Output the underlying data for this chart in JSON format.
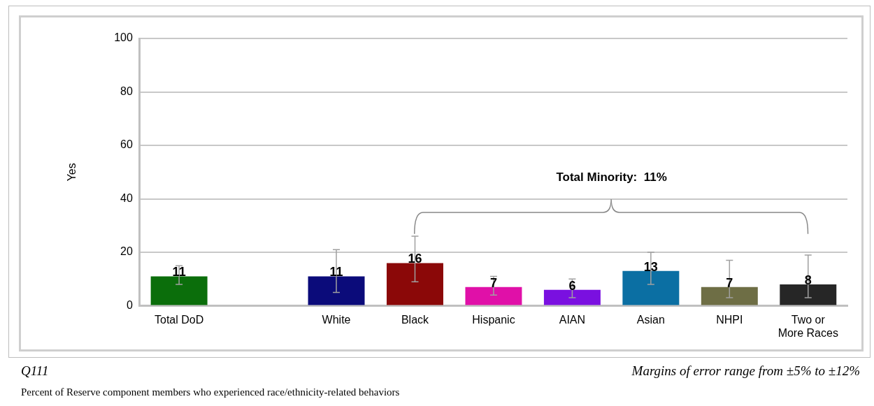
{
  "chart_data": {
    "type": "bar",
    "categories": [
      "Total DoD",
      null,
      "White",
      "Black",
      "Hispanic",
      "AIAN",
      "Asian",
      "NHPI",
      "Two or More Races"
    ],
    "values": [
      11,
      null,
      11,
      16,
      7,
      6,
      13,
      7,
      8
    ],
    "colors": [
      "#0b6e0b",
      null,
      "#0b0b7a",
      "#8b0808",
      "#e010a8",
      "#7a10e0",
      "#0b6fa3",
      "#6e6e45",
      "#262626"
    ],
    "errors": [
      [
        8,
        15
      ],
      null,
      [
        5,
        21
      ],
      [
        9,
        26
      ],
      [
        4,
        11
      ],
      [
        3,
        10
      ],
      [
        8,
        20
      ],
      [
        3,
        17
      ],
      [
        3,
        19
      ]
    ],
    "ylabel": "Yes",
    "ylim": [
      0,
      100
    ],
    "yticks": [
      0,
      20,
      40,
      60,
      80,
      100
    ],
    "grid": "y",
    "data_labels": true,
    "legend": false,
    "annotations": [
      "Total Minority:  11%",
      "Q111",
      "Margins of error range from ±5% to ±12%",
      "Percent of Reserve component members who experienced race/ethnicity-related behaviors"
    ]
  }
}
